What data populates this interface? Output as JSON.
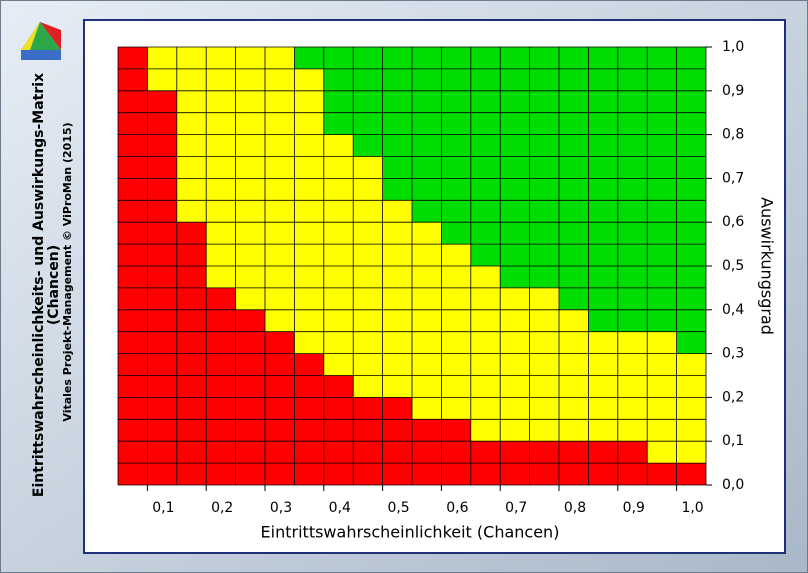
{
  "chart_data": {
    "type": "heatmap",
    "title_lines": [
      "Eintrittswahrscheinlichkeits- und Auswirkungs-Matrix",
      "(Chancen)"
    ],
    "credit": "Vitales Projekt-Management © ViProMan  (2015)",
    "x_label": "Eintrittswahrscheinlichkeit (Chancen)",
    "y_label": "Auswirkungsgrad",
    "xlim": [
      0.05,
      1.05
    ],
    "xticks": [
      {
        "value": 0.1,
        "label": "0,1"
      },
      {
        "value": 0.2,
        "label": "0,2"
      },
      {
        "value": 0.3,
        "label": "0,3"
      },
      {
        "value": 0.4,
        "label": "0,4"
      },
      {
        "value": 0.5,
        "label": "0,5"
      },
      {
        "value": 0.6,
        "label": "0,6"
      },
      {
        "value": 0.7,
        "label": "0,7"
      },
      {
        "value": 0.8,
        "label": "0,8"
      },
      {
        "value": 0.9,
        "label": "0,9"
      },
      {
        "value": 1.0,
        "label": "1,0"
      }
    ],
    "ylim": [
      0,
      1
    ],
    "yticks": [
      {
        "value": 0,
        "label": "0,0"
      },
      {
        "value": 0.1,
        "label": "0,1"
      },
      {
        "value": 0.2,
        "label": "0,2"
      },
      {
        "value": 0.3,
        "label": "0,3"
      },
      {
        "value": 0.4,
        "label": "0,4"
      },
      {
        "value": 0.5,
        "label": "0,5"
      },
      {
        "value": 0.6,
        "label": "0,6"
      },
      {
        "value": 0.7,
        "label": "0,7"
      },
      {
        "value": 0.8,
        "label": "0,8"
      },
      {
        "value": 0.9,
        "label": "0,9"
      },
      {
        "value": 1.0,
        "label": "1,0"
      }
    ],
    "red_top": [
      1.0,
      0.9,
      0.6,
      0.45,
      0.4,
      0.35,
      0.3,
      0.25,
      0.2,
      0.2,
      0.15,
      0.15,
      0.1,
      0.1,
      0.1,
      0.1,
      0.1,
      0.1,
      0.05,
      0.05
    ],
    "yellow_top": [
      1.0,
      1.0,
      1.0,
      1.0,
      1.0,
      1.0,
      0.95,
      0.8,
      0.75,
      0.65,
      0.6,
      0.55,
      0.5,
      0.45,
      0.45,
      0.4,
      0.35,
      0.35,
      0.35,
      0.3
    ],
    "colors": {
      "red": "#ff0000",
      "yellow": "#ffff00",
      "green": "#00dd00"
    }
  }
}
